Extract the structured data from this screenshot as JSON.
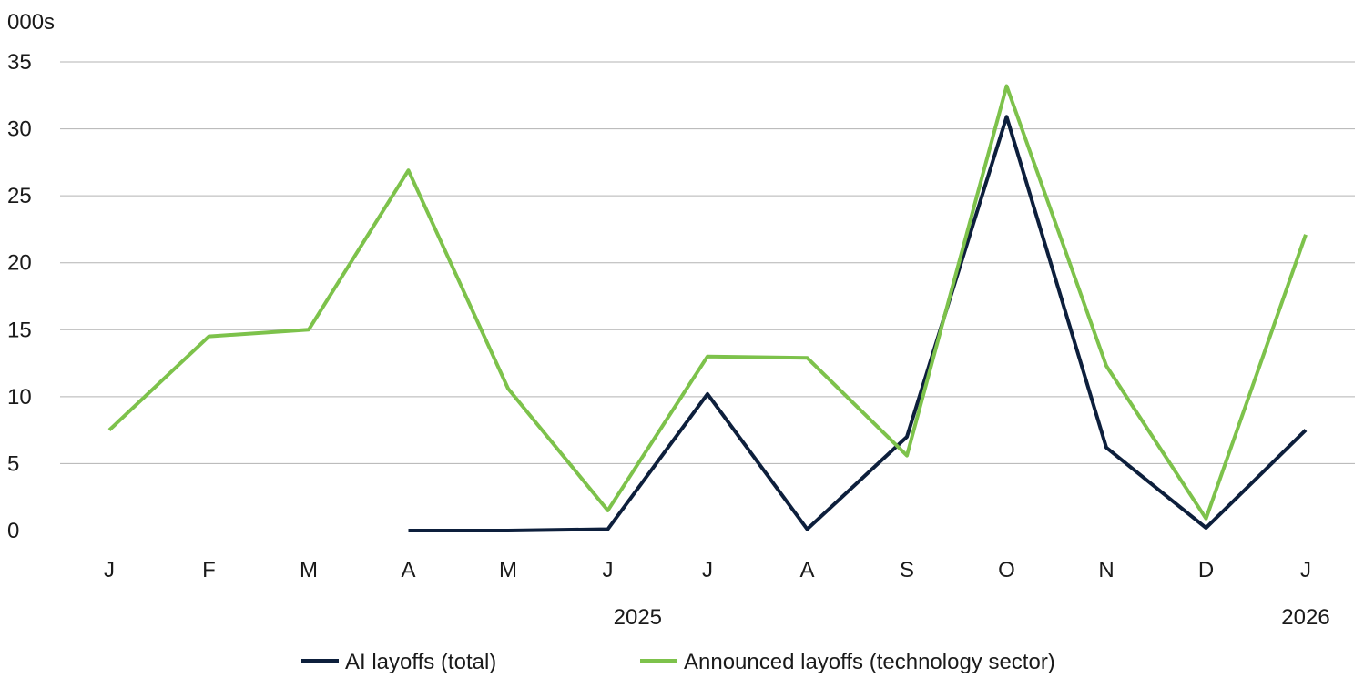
{
  "chart_data": {
    "type": "line",
    "unit_label": "000s",
    "categories": [
      "J",
      "F",
      "M",
      "A",
      "M",
      "J",
      "J",
      "A",
      "S",
      "O",
      "N",
      "D",
      "J"
    ],
    "year_labels": [
      {
        "label": "2025",
        "category_index": 5.3
      },
      {
        "label": "2026",
        "category_index": 12
      }
    ],
    "ylim": [
      0,
      35
    ],
    "yticks": [
      0,
      5,
      10,
      15,
      20,
      25,
      30,
      35
    ],
    "grid": true,
    "legend_position": "bottom",
    "series": [
      {
        "name": "AI layoffs (total)",
        "color": "#0d1f3c",
        "values": [
          null,
          null,
          null,
          0,
          0,
          0.1,
          10.2,
          0.1,
          7.0,
          30.9,
          6.2,
          0.2,
          7.5
        ]
      },
      {
        "name": "Announced layoffs (technology sector)",
        "color": "#7dc24b",
        "values": [
          7.5,
          14.5,
          15.0,
          26.9,
          10.6,
          1.5,
          13.0,
          12.9,
          5.6,
          33.2,
          12.3,
          0.9,
          22.1
        ]
      }
    ]
  }
}
